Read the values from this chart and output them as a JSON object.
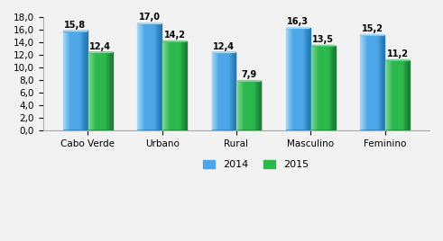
{
  "categories": [
    "Cabo Verde",
    "Urbano",
    "Rural",
    "Masculino",
    "Feminino"
  ],
  "values_2014": [
    15.8,
    17.0,
    12.4,
    16.3,
    15.2
  ],
  "values_2015": [
    12.4,
    14.2,
    7.9,
    13.5,
    11.2
  ],
  "color_2014_main": "#4da6e8",
  "color_2014_light": "#a8d8f5",
  "color_2014_dark": "#2176ae",
  "color_2015_main": "#2db84e",
  "color_2015_light": "#80d898",
  "color_2015_dark": "#1a7a34",
  "ylim": [
    0,
    18.0
  ],
  "yticks": [
    0.0,
    2.0,
    4.0,
    6.0,
    8.0,
    10.0,
    12.0,
    14.0,
    16.0,
    18.0
  ],
  "legend_labels": [
    "2014",
    "2015"
  ],
  "bar_width": 0.32,
  "label_fontsize": 7.0,
  "tick_fontsize": 7.5,
  "legend_fontsize": 8,
  "background_color": "#f2f2f2",
  "plot_bg_color": "#f2f2f2"
}
